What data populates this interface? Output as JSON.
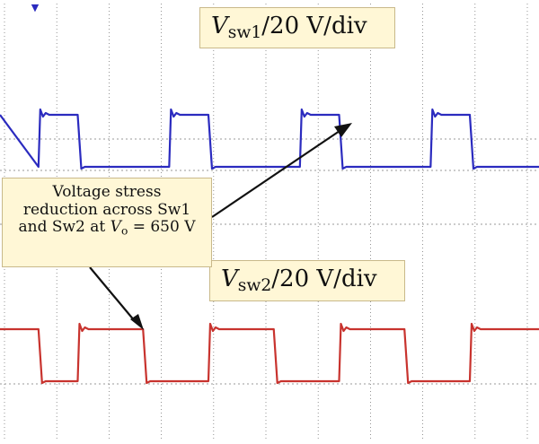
{
  "colors": {
    "trace1": "#2b2bbf",
    "trace2": "#c8332e",
    "grid": "#7a7a7a",
    "box_fill": "#fff7d6",
    "arrow": "#111111"
  },
  "chart_data": {
    "type": "line",
    "subtype": "oscilloscope-screenshot",
    "grid": true,
    "series": [
      {
        "name": "Vsw1",
        "scale": "20 V/div",
        "waveform": "square",
        "rising_edges_x": [
          0.65,
          3.15,
          5.65,
          8.15
        ],
        "falling_edges_x": [
          1.4,
          3.9,
          6.4,
          8.9
        ],
        "levels": [
          "high",
          "low"
        ]
      },
      {
        "name": "Vsw2",
        "scale": "20 V/div",
        "waveform": "square",
        "rising_edges_x": [
          1.4,
          3.9,
          6.4,
          8.9
        ],
        "falling_edges_x": [
          0.65,
          2.65,
          5.15,
          7.65
        ],
        "levels": [
          "high",
          "low"
        ]
      }
    ]
  },
  "labels": {
    "sw1": {
      "var": "V",
      "sub": "sw1",
      "rest": "/20 V/div"
    },
    "sw2": {
      "var": "V",
      "sub": "sw2",
      "rest": "/20 V/div"
    }
  },
  "annotation": {
    "line1": "Voltage stress",
    "line2": "reduction across Sw1",
    "line3_prefix": "and Sw2 at ",
    "line3_var": "V",
    "line3_sub": "o",
    "line3_suffix": " = 650 V"
  }
}
